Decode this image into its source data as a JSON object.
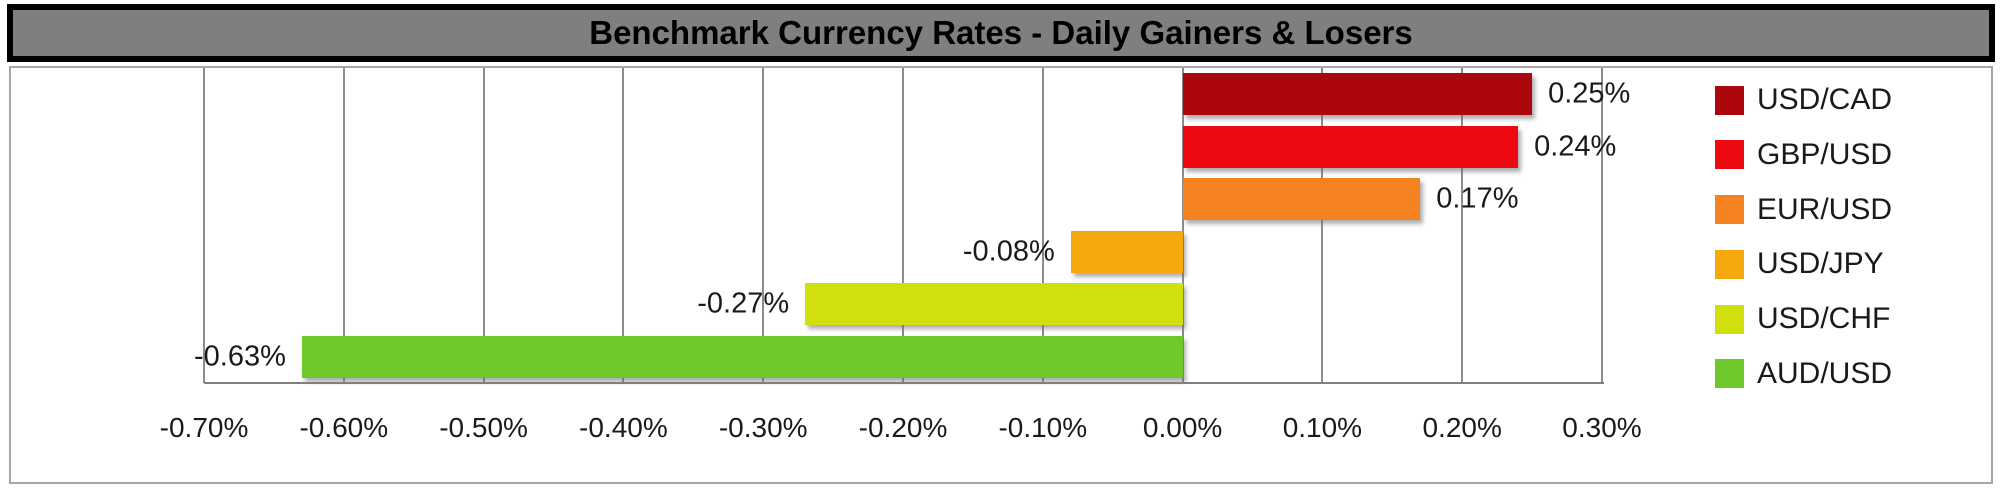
{
  "title": "Benchmark Currency Rates - Daily Gainers & Losers",
  "colors": {
    "title_bar_bg": "#7F7F7F",
    "title_bar_border": "#000000",
    "gridline": "#8C8C8C",
    "container_border": "#A6A6A6",
    "axis_text": "#1A1A1A",
    "background": "#FFFFFF"
  },
  "chart_data": {
    "type": "bar",
    "orientation": "horizontal",
    "title": "Benchmark Currency Rates - Daily Gainers & Losers",
    "xlabel": "",
    "ylabel": "",
    "xlim": [
      -0.7,
      0.3
    ],
    "grid": true,
    "legend_position": "right",
    "value_unit": "percent",
    "series": [
      {
        "name": "USD/CAD",
        "value": 0.25,
        "display": "0.25%",
        "color": "#AB070C"
      },
      {
        "name": "GBP/USD",
        "value": 0.24,
        "display": "0.24%",
        "color": "#EC0A10"
      },
      {
        "name": "EUR/USD",
        "value": 0.17,
        "display": "0.17%",
        "color": "#F5821F"
      },
      {
        "name": "USD/JPY",
        "value": -0.08,
        "display": "-0.08%",
        "color": "#F7A80C"
      },
      {
        "name": "USD/CHF",
        "value": -0.27,
        "display": "-0.27%",
        "color": "#D0E00C"
      },
      {
        "name": "AUD/USD",
        "value": -0.63,
        "display": "-0.63%",
        "color": "#6FC82B"
      }
    ],
    "x_ticks": [
      {
        "value": -0.7,
        "label": "-0.70%"
      },
      {
        "value": -0.6,
        "label": "-0.60%"
      },
      {
        "value": -0.5,
        "label": "-0.50%"
      },
      {
        "value": -0.4,
        "label": "-0.40%"
      },
      {
        "value": -0.3,
        "label": "-0.30%"
      },
      {
        "value": -0.2,
        "label": "-0.20%"
      },
      {
        "value": -0.1,
        "label": "-0.10%"
      },
      {
        "value": 0.0,
        "label": "0.00%"
      },
      {
        "value": 0.1,
        "label": "0.10%"
      },
      {
        "value": 0.2,
        "label": "0.20%"
      },
      {
        "value": 0.3,
        "label": "0.30%"
      }
    ]
  }
}
